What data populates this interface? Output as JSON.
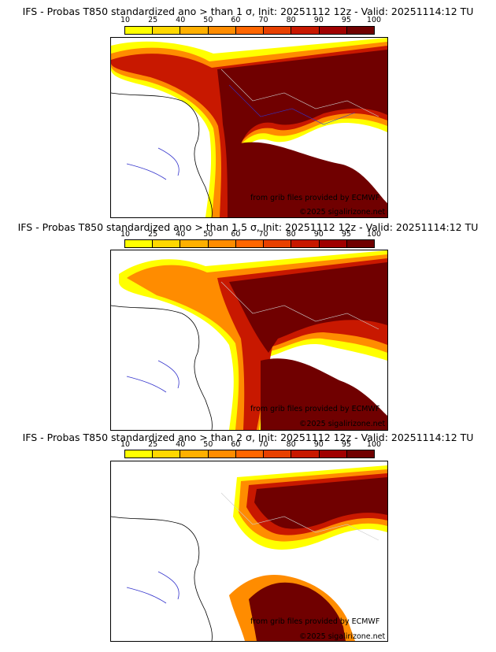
{
  "colorbar": {
    "ticks": [
      "10",
      "25",
      "40",
      "50",
      "60",
      "70",
      "80",
      "90",
      "95",
      "100"
    ],
    "colors": [
      "#ffff00",
      "#ffd800",
      "#ffb000",
      "#ff8c00",
      "#ff6600",
      "#e84000",
      "#c81800",
      "#a00000",
      "#700000"
    ]
  },
  "panels": [
    {
      "title": "IFS - Probas T850  standardized ano > than 1 σ, Init: 20251112 12z - Valid: 20251114:12 TU",
      "credit1": "from grib files provided by ECMWF",
      "credit2": "©2025 sigalirizone.net"
    },
    {
      "title": "IFS - Probas T850  standardized ano > than 1.5 σ, Init: 20251112 12z - Valid: 20251114:12 TU",
      "credit1": "from grib files provided by ECMWF",
      "credit2": "©2025 sigalirizone.net"
    },
    {
      "title": "IFS - Probas T850  standardized ano > than 2 σ, Init: 20251112 12z - Valid: 20251114:12 TU",
      "credit1": "from grib files provided by ECMWF",
      "credit2": "©2025 sigalirizone.net"
    }
  ]
}
